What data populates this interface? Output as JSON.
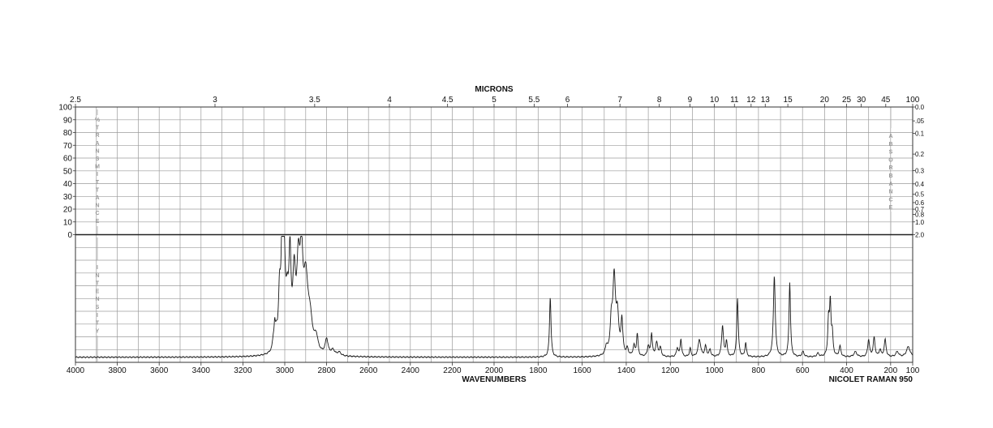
{
  "chart_data": {
    "type": "line",
    "top_axis": {
      "title": "MICRONS",
      "ticks": [
        "2.5",
        "3",
        "3.5",
        "4",
        "4.5",
        "5",
        "5.5",
        "6",
        "7",
        "8",
        "9",
        "10",
        "11",
        "12",
        "13",
        "15",
        "20",
        "25",
        "30",
        "45",
        "100"
      ]
    },
    "bottom_axis": {
      "title": "WAVENUMBERS",
      "ticks": [
        4000,
        3800,
        3600,
        3400,
        3200,
        3000,
        2800,
        2600,
        2400,
        2200,
        2000,
        1800,
        1600,
        1400,
        1200,
        1000,
        800,
        600,
        400,
        200,
        100
      ],
      "xlim": [
        4000,
        100
      ]
    },
    "left_axis": {
      "ticks": [
        100,
        90,
        80,
        70,
        60,
        50,
        40,
        30,
        20,
        10,
        0
      ],
      "title_letters": [
        "%",
        "T",
        "R",
        "A",
        "N",
        "S",
        "M",
        "I",
        "T",
        "T",
        "A",
        "N",
        "C",
        "E"
      ]
    },
    "right_axis": {
      "ticks": [
        "0.0",
        ".05",
        "0.1",
        "0.2",
        "0.3",
        "0.4",
        "0.5",
        "0.6",
        "0.7",
        "0.8",
        "1.0",
        "2.0"
      ],
      "tick_values": [
        0.0,
        0.05,
        0.1,
        0.2,
        0.3,
        0.4,
        0.5,
        0.6,
        0.7,
        0.8,
        1.0,
        2.0
      ],
      "title_letters": [
        "A",
        "B",
        "S",
        "O",
        "R",
        "B",
        "A",
        "N",
        "C",
        "E"
      ]
    },
    "intensity_axis": {
      "title_letters": [
        "I",
        "N",
        "T",
        "E",
        "N",
        "S",
        "I",
        "T",
        "Y"
      ]
    },
    "instrument_label": "NICOLET RAMAN 950",
    "baseline": 0.02,
    "peaks": [
      {
        "x": 3055,
        "y": 0.05,
        "w": 5
      },
      {
        "x": 3048,
        "y": 0.12,
        "w": 4
      },
      {
        "x": 3040,
        "y": 0.08,
        "w": 6
      },
      {
        "x": 3025,
        "y": 0.3,
        "w": 6
      },
      {
        "x": 3012,
        "y": 0.7,
        "w": 6
      },
      {
        "x": 3002,
        "y": 0.4,
        "w": 6
      },
      {
        "x": 2988,
        "y": 0.24,
        "w": 8
      },
      {
        "x": 2975,
        "y": 0.5,
        "w": 6
      },
      {
        "x": 2955,
        "y": 0.4,
        "w": 8
      },
      {
        "x": 2935,
        "y": 0.45,
        "w": 9
      },
      {
        "x": 2920,
        "y": 0.48,
        "w": 8
      },
      {
        "x": 2900,
        "y": 0.38,
        "w": 12
      },
      {
        "x": 2880,
        "y": 0.18,
        "w": 14
      },
      {
        "x": 2850,
        "y": 0.08,
        "w": 10
      },
      {
        "x": 2800,
        "y": 0.09,
        "w": 8
      },
      {
        "x": 2770,
        "y": 0.03,
        "w": 10
      },
      {
        "x": 2740,
        "y": 0.02,
        "w": 10
      },
      {
        "x": 1745,
        "y": 0.35,
        "w": 4
      },
      {
        "x": 1490,
        "y": 0.05,
        "w": 6
      },
      {
        "x": 1468,
        "y": 0.18,
        "w": 6
      },
      {
        "x": 1455,
        "y": 0.44,
        "w": 7
      },
      {
        "x": 1440,
        "y": 0.22,
        "w": 7
      },
      {
        "x": 1420,
        "y": 0.2,
        "w": 5
      },
      {
        "x": 1395,
        "y": 0.04,
        "w": 5
      },
      {
        "x": 1365,
        "y": 0.06,
        "w": 5
      },
      {
        "x": 1350,
        "y": 0.13,
        "w": 4
      },
      {
        "x": 1300,
        "y": 0.06,
        "w": 5
      },
      {
        "x": 1285,
        "y": 0.13,
        "w": 4
      },
      {
        "x": 1262,
        "y": 0.08,
        "w": 6
      },
      {
        "x": 1245,
        "y": 0.05,
        "w": 5
      },
      {
        "x": 1168,
        "y": 0.05,
        "w": 5
      },
      {
        "x": 1152,
        "y": 0.1,
        "w": 4
      },
      {
        "x": 1110,
        "y": 0.05,
        "w": 4
      },
      {
        "x": 1068,
        "y": 0.1,
        "w": 7
      },
      {
        "x": 1040,
        "y": 0.06,
        "w": 5
      },
      {
        "x": 1020,
        "y": 0.04,
        "w": 5
      },
      {
        "x": 963,
        "y": 0.18,
        "w": 5
      },
      {
        "x": 945,
        "y": 0.09,
        "w": 4
      },
      {
        "x": 895,
        "y": 0.34,
        "w": 4
      },
      {
        "x": 858,
        "y": 0.08,
        "w": 4
      },
      {
        "x": 728,
        "y": 0.47,
        "w": 5
      },
      {
        "x": 658,
        "y": 0.43,
        "w": 4
      },
      {
        "x": 598,
        "y": 0.03,
        "w": 6
      },
      {
        "x": 530,
        "y": 0.02,
        "w": 6
      },
      {
        "x": 482,
        "y": 0.2,
        "w": 4
      },
      {
        "x": 474,
        "y": 0.3,
        "w": 4
      },
      {
        "x": 465,
        "y": 0.12,
        "w": 4
      },
      {
        "x": 430,
        "y": 0.06,
        "w": 5
      },
      {
        "x": 360,
        "y": 0.03,
        "w": 8
      },
      {
        "x": 300,
        "y": 0.1,
        "w": 5
      },
      {
        "x": 275,
        "y": 0.11,
        "w": 5
      },
      {
        "x": 248,
        "y": 0.04,
        "w": 5
      },
      {
        "x": 225,
        "y": 0.1,
        "w": 5
      },
      {
        "x": 170,
        "y": 0.03,
        "w": 8
      },
      {
        "x": 120,
        "y": 0.06,
        "w": 10
      }
    ]
  }
}
